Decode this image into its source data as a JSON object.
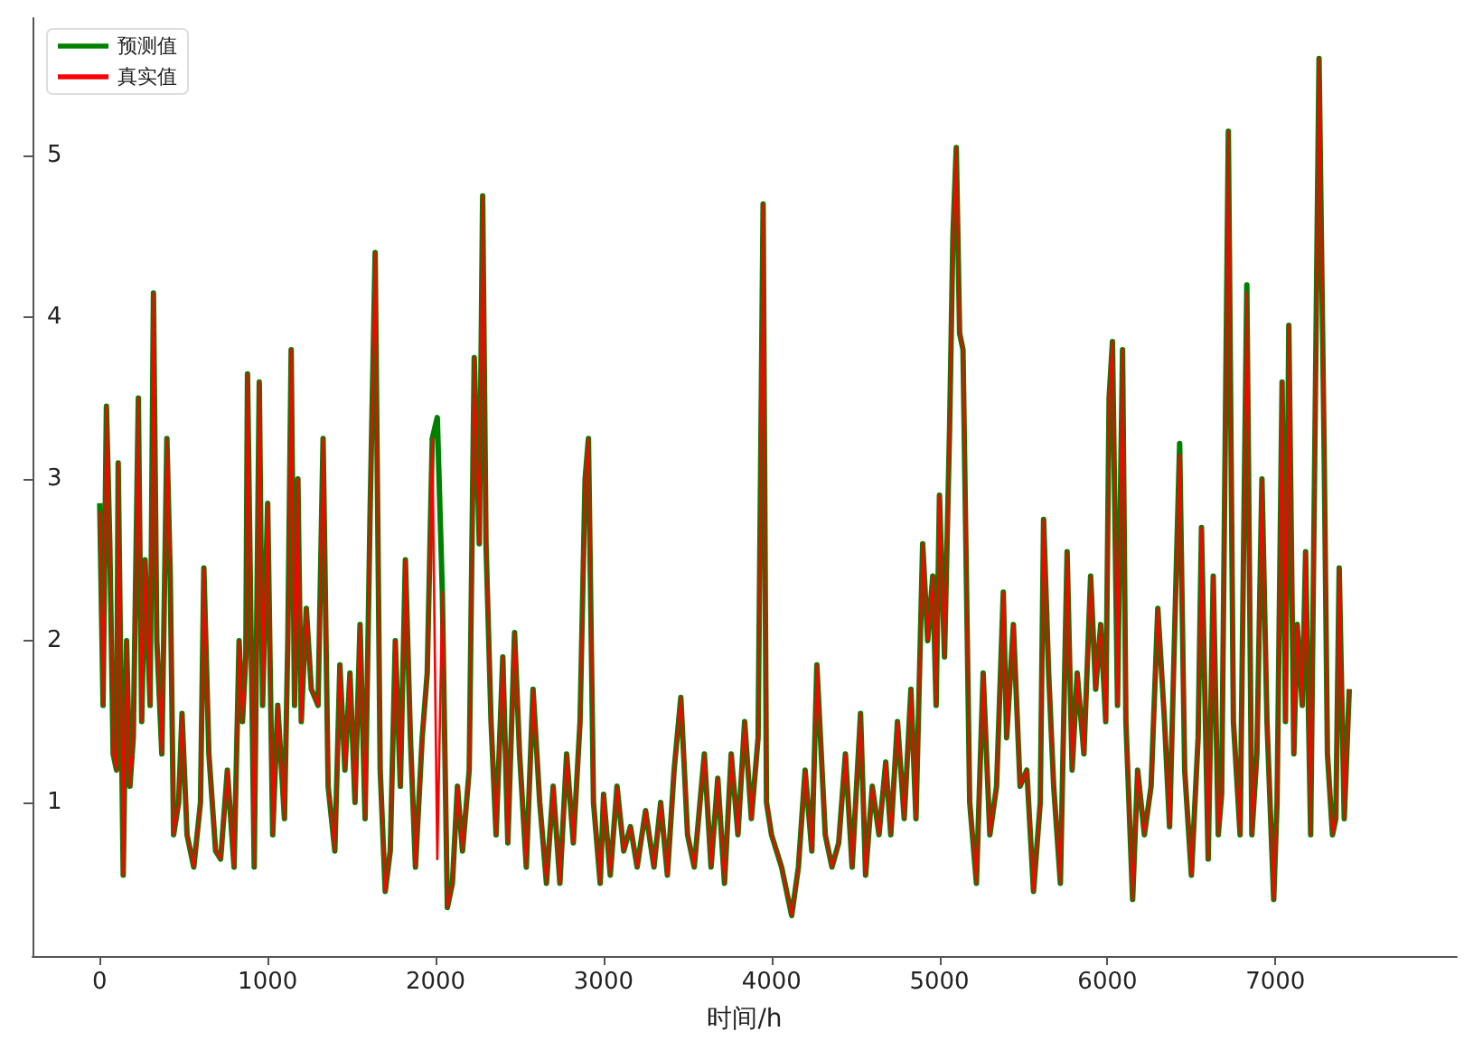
{
  "chart_data": {
    "type": "line",
    "xlabel": "时间/h",
    "legend": "top left",
    "grid": false,
    "marker": "none",
    "xlim": [
      -400,
      8080
    ],
    "xticks": [
      0,
      1000,
      2000,
      3000,
      4000,
      5000,
      6000,
      7000
    ],
    "ylim": [
      0.05,
      5.85
    ],
    "yticks": [
      1,
      2,
      3,
      4,
      5
    ],
    "x": [
      0,
      20,
      40,
      60,
      80,
      100,
      110,
      140,
      160,
      180,
      200,
      230,
      250,
      270,
      300,
      320,
      340,
      370,
      400,
      420,
      440,
      470,
      490,
      520,
      560,
      600,
      620,
      650,
      690,
      720,
      760,
      800,
      830,
      850,
      870,
      880,
      920,
      950,
      970,
      1000,
      1030,
      1060,
      1100,
      1120,
      1140,
      1160,
      1180,
      1200,
      1230,
      1260,
      1300,
      1330,
      1360,
      1400,
      1430,
      1460,
      1490,
      1520,
      1550,
      1580,
      1610,
      1640,
      1670,
      1700,
      1730,
      1760,
      1790,
      1820,
      1850,
      1880,
      1920,
      1950,
      1980,
      2010,
      2040,
      2070,
      2100,
      2130,
      2160,
      2200,
      2230,
      2260,
      2280,
      2300,
      2330,
      2360,
      2400,
      2430,
      2470,
      2500,
      2540,
      2580,
      2620,
      2660,
      2700,
      2740,
      2780,
      2820,
      2860,
      2890,
      2910,
      2940,
      2980,
      3000,
      3040,
      3080,
      3120,
      3160,
      3200,
      3250,
      3300,
      3340,
      3380,
      3420,
      3460,
      3500,
      3540,
      3600,
      3640,
      3680,
      3720,
      3760,
      3800,
      3840,
      3880,
      3920,
      3950,
      3970,
      4000,
      4060,
      4120,
      4160,
      4200,
      4240,
      4270,
      4320,
      4360,
      4400,
      4440,
      4480,
      4530,
      4560,
      4600,
      4640,
      4680,
      4710,
      4750,
      4790,
      4830,
      4860,
      4900,
      4930,
      4960,
      4980,
      5000,
      5030,
      5060,
      5080,
      5100,
      5120,
      5140,
      5180,
      5220,
      5260,
      5300,
      5340,
      5380,
      5400,
      5440,
      5480,
      5520,
      5560,
      5600,
      5620,
      5650,
      5680,
      5720,
      5760,
      5790,
      5820,
      5860,
      5900,
      5930,
      5960,
      5990,
      6010,
      6030,
      6060,
      6090,
      6110,
      6150,
      6180,
      6220,
      6260,
      6300,
      6340,
      6370,
      6400,
      6430,
      6460,
      6500,
      6540,
      6560,
      6600,
      6630,
      6660,
      6680,
      6720,
      6750,
      6790,
      6830,
      6860,
      6890,
      6920,
      6950,
      6990,
      7010,
      7040,
      7060,
      7080,
      7110,
      7130,
      7160,
      7180,
      7210,
      7260,
      7290,
      7310,
      7340,
      7360,
      7380,
      7410,
      7440
    ],
    "series": [
      {
        "name": "预测值",
        "color": "#008000",
        "values": [
          2.85,
          1.6,
          3.45,
          2.6,
          1.3,
          1.2,
          3.1,
          0.55,
          2.0,
          1.1,
          1.4,
          3.5,
          1.5,
          2.5,
          1.6,
          4.15,
          2.0,
          1.3,
          3.25,
          2.4,
          0.8,
          1.0,
          1.55,
          0.8,
          0.6,
          1.0,
          2.45,
          1.3,
          0.7,
          0.65,
          1.2,
          0.6,
          2.0,
          1.5,
          1.9,
          3.65,
          0.6,
          3.6,
          1.6,
          2.85,
          0.8,
          1.6,
          0.9,
          2.0,
          3.8,
          1.6,
          3.0,
          1.5,
          2.2,
          1.7,
          1.6,
          3.25,
          1.1,
          0.7,
          1.85,
          1.2,
          1.8,
          1.0,
          2.1,
          0.9,
          2.8,
          4.4,
          1.2,
          0.45,
          0.7,
          2.0,
          1.1,
          2.5,
          1.4,
          0.6,
          1.4,
          1.8,
          3.25,
          3.38,
          2.3,
          0.35,
          0.5,
          1.1,
          0.7,
          1.2,
          3.75,
          2.6,
          4.75,
          2.6,
          1.5,
          0.8,
          1.9,
          0.75,
          2.05,
          1.3,
          0.6,
          1.7,
          1.0,
          0.5,
          1.1,
          0.5,
          1.3,
          0.75,
          1.5,
          3.0,
          3.25,
          1.0,
          0.5,
          1.05,
          0.55,
          1.1,
          0.7,
          0.85,
          0.6,
          0.95,
          0.6,
          1.0,
          0.55,
          1.2,
          1.65,
          0.8,
          0.6,
          1.3,
          0.6,
          1.15,
          0.5,
          1.3,
          0.8,
          1.5,
          0.9,
          1.4,
          4.7,
          1.0,
          0.8,
          0.6,
          0.3,
          0.6,
          1.2,
          0.7,
          1.85,
          0.8,
          0.6,
          0.75,
          1.3,
          0.6,
          1.55,
          0.55,
          1.1,
          0.8,
          1.25,
          0.8,
          1.5,
          0.9,
          1.7,
          0.9,
          2.6,
          2.0,
          2.4,
          1.6,
          2.9,
          1.9,
          3.3,
          4.5,
          5.05,
          3.9,
          3.8,
          1.0,
          0.5,
          1.8,
          0.8,
          1.1,
          2.3,
          1.4,
          2.1,
          1.1,
          1.2,
          0.45,
          1.0,
          2.75,
          1.8,
          1.1,
          0.5,
          2.55,
          1.2,
          1.8,
          1.3,
          2.4,
          1.7,
          2.1,
          1.5,
          3.5,
          3.85,
          1.6,
          3.8,
          1.5,
          0.4,
          1.2,
          0.8,
          1.1,
          2.2,
          1.5,
          0.85,
          2.05,
          3.22,
          1.2,
          0.55,
          1.4,
          2.7,
          0.65,
          2.4,
          0.8,
          1.05,
          5.15,
          1.5,
          0.8,
          4.2,
          0.8,
          1.3,
          3.0,
          1.5,
          0.4,
          1.0,
          3.6,
          1.5,
          3.95,
          1.3,
          2.1,
          1.6,
          2.55,
          0.8,
          5.6,
          3.2,
          1.3,
          0.8,
          0.9,
          2.45,
          0.9,
          1.7
        ]
      },
      {
        "name": "真实值",
        "color": "#ff0000",
        "values": [
          2.8,
          1.6,
          3.45,
          2.6,
          1.3,
          1.2,
          3.1,
          0.55,
          2.0,
          1.1,
          1.4,
          3.5,
          1.5,
          2.5,
          1.6,
          4.15,
          2.0,
          1.3,
          3.25,
          2.4,
          0.8,
          1.0,
          1.55,
          0.8,
          0.6,
          1.0,
          2.45,
          1.3,
          0.7,
          0.65,
          1.2,
          0.6,
          2.0,
          1.5,
          1.9,
          3.65,
          0.6,
          3.6,
          1.6,
          2.85,
          0.8,
          1.6,
          0.9,
          2.0,
          3.8,
          1.6,
          3.0,
          1.5,
          2.2,
          1.7,
          1.6,
          3.25,
          1.1,
          0.7,
          1.85,
          1.2,
          1.8,
          1.0,
          2.1,
          0.9,
          2.8,
          4.4,
          1.2,
          0.45,
          0.7,
          2.0,
          1.1,
          2.5,
          1.4,
          0.6,
          1.4,
          1.8,
          3.25,
          0.65,
          2.3,
          0.35,
          0.5,
          1.1,
          0.7,
          1.2,
          3.75,
          2.6,
          4.75,
          2.6,
          1.5,
          0.8,
          1.9,
          0.75,
          2.05,
          1.3,
          0.6,
          1.7,
          1.0,
          0.5,
          1.1,
          0.5,
          1.3,
          0.75,
          1.5,
          3.0,
          3.25,
          1.0,
          0.5,
          1.05,
          0.55,
          1.1,
          0.7,
          0.85,
          0.6,
          0.95,
          0.6,
          1.0,
          0.55,
          1.2,
          1.65,
          0.8,
          0.6,
          1.3,
          0.6,
          1.15,
          0.5,
          1.3,
          0.8,
          1.5,
          0.9,
          1.4,
          4.7,
          1.0,
          0.8,
          0.6,
          0.3,
          0.6,
          1.2,
          0.7,
          1.85,
          0.8,
          0.6,
          0.75,
          1.3,
          0.6,
          1.55,
          0.55,
          1.1,
          0.8,
          1.25,
          0.8,
          1.5,
          0.9,
          1.7,
          0.9,
          2.6,
          2.0,
          2.4,
          1.6,
          2.9,
          1.9,
          3.3,
          4.5,
          5.05,
          3.9,
          3.8,
          1.0,
          0.5,
          1.8,
          0.8,
          1.1,
          2.3,
          1.4,
          2.1,
          1.1,
          1.2,
          0.45,
          1.0,
          2.75,
          1.8,
          1.1,
          0.5,
          2.55,
          1.2,
          1.8,
          1.3,
          2.4,
          1.7,
          2.1,
          1.5,
          3.5,
          3.85,
          1.6,
          3.8,
          1.5,
          0.4,
          1.2,
          0.8,
          1.1,
          2.2,
          1.5,
          0.85,
          2.05,
          3.15,
          1.2,
          0.55,
          1.4,
          2.7,
          0.65,
          2.4,
          0.8,
          1.05,
          5.15,
          1.5,
          0.8,
          4.15,
          0.8,
          1.3,
          3.0,
          1.5,
          0.4,
          1.0,
          3.6,
          1.5,
          3.95,
          1.3,
          2.1,
          1.6,
          2.55,
          0.8,
          5.6,
          3.2,
          1.3,
          0.8,
          0.9,
          2.45,
          0.9,
          1.7
        ]
      }
    ]
  }
}
